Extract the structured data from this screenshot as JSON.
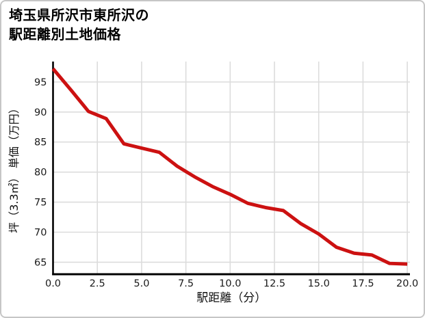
{
  "page": {
    "background_color": "#ffffff",
    "border_color": "#c6c6c6"
  },
  "title": {
    "line1": "埼玉県所沢市東所沢の",
    "line2": "駅距離別土地価格"
  },
  "chart_data": {
    "type": "line",
    "title": "埼玉県所沢市東所沢の駅距離別土地価格",
    "xlabel": "駅距離（分）",
    "ylabel": "坪（3.3㎡） 単価（万円）",
    "x": [
      0,
      1,
      2,
      3,
      4,
      5,
      6,
      7,
      8,
      9,
      10,
      11,
      12,
      13,
      14,
      15,
      16,
      17,
      18,
      19,
      20
    ],
    "series": [
      {
        "name": "坪単価（万円）",
        "color": "#cc1111",
        "values": [
          97.2,
          93.7,
          90.1,
          88.9,
          84.7,
          84.0,
          83.3,
          81.0,
          79.2,
          77.6,
          76.3,
          74.8,
          74.1,
          73.6,
          71.4,
          69.7,
          67.5,
          66.5,
          66.2,
          64.8,
          64.7
        ]
      }
    ],
    "x_tick_values": [
      0,
      2.5,
      5,
      7.5,
      10,
      12.5,
      15,
      17.5,
      20
    ],
    "x_tick_labels": [
      "0.0",
      "2.5",
      "5.0",
      "7.5",
      "10.0",
      "12.5",
      "15.0",
      "17.5",
      "20.0"
    ],
    "y_tick_values": [
      65,
      70,
      75,
      80,
      85,
      90,
      95
    ],
    "y_tick_labels": [
      "65",
      "70",
      "75",
      "80",
      "85",
      "90",
      "95"
    ],
    "xlim": [
      0,
      20.15
    ],
    "ylim": [
      63.0,
      98.4
    ],
    "grid": true,
    "legend": "none",
    "gridline_color": "#dcdcdc",
    "axis_color": "#000000",
    "tick_label_color": "#1a1a1a",
    "line_width": 5
  }
}
